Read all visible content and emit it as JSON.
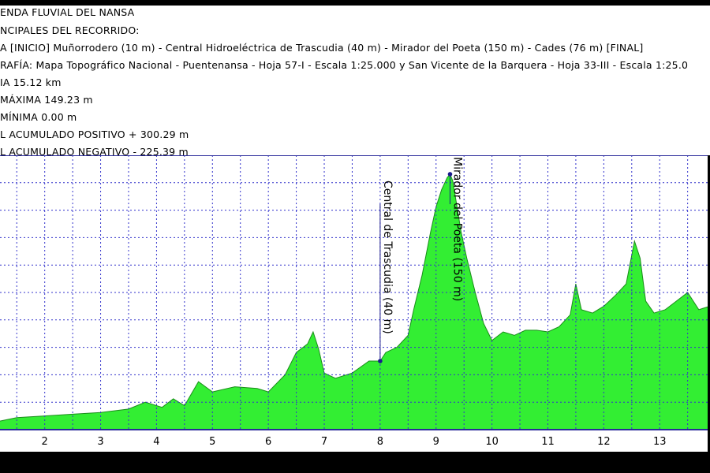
{
  "header": {
    "lines": [
      "ENDA FLUVIAL DEL NANSA",
      "NCIPALES DEL RECORRIDO:",
      "A  [INICIO] Muñorrodero (10 m) - Central Hidroeléctrica de Trascudia  (40 m) - Mirador del Poeta (150 m) - Cades (76 m)  [FINAL]",
      "RAFÍA:  Mapa Topográfico Nacional - Puentenansa - Hoja 57-I - Escala 1:25.000 y San Vicente de la Barquera - Hoja 33-III - Escala 1:25.0",
      "IA  15.12 km",
      "MÁXIMA 149.23 m",
      "MÍNIMA  0.00 m",
      "L ACUMULADO POSITIVO + 300.29 m",
      "L ACUMULADO NEGATIVO - 225.39 m"
    ]
  },
  "colors": {
    "fill": "#33ee33",
    "outline": "#1a8c1a",
    "grid": "#3333cc",
    "axis": "#2a2a9a",
    "marker": "#1a1a8c",
    "background": "#ffffff",
    "frame": "#000000"
  },
  "chart_data": {
    "type": "area",
    "title": "",
    "xlabel": "",
    "ylabel": "",
    "xlim": [
      1.2,
      13.9
    ],
    "ylim": [
      0,
      160
    ],
    "grid": true,
    "x_ticks": [
      2,
      3,
      4,
      5,
      6,
      7,
      8,
      9,
      10,
      11,
      12,
      13
    ],
    "y_grid_values": [
      16,
      32,
      48,
      64,
      80,
      96,
      112,
      128,
      144
    ],
    "series": [
      {
        "name": "",
        "x": [
          1.2,
          1.5,
          2.0,
          2.5,
          3.0,
          3.5,
          3.8,
          4.1,
          4.3,
          4.5,
          4.75,
          5.0,
          5.4,
          5.8,
          6.0,
          6.3,
          6.5,
          6.7,
          6.8,
          6.9,
          7.0,
          7.2,
          7.5,
          7.8,
          8.0,
          8.1,
          8.3,
          8.5,
          8.6,
          8.75,
          8.9,
          9.0,
          9.1,
          9.2,
          9.25,
          9.3,
          9.45,
          9.55,
          9.7,
          9.85,
          10.0,
          10.2,
          10.4,
          10.6,
          10.8,
          11.0,
          11.2,
          11.4,
          11.5,
          11.6,
          11.8,
          12.0,
          12.2,
          12.4,
          12.55,
          12.65,
          12.75,
          12.9,
          13.1,
          13.3,
          13.5,
          13.7,
          13.9
        ],
        "y": [
          5,
          7,
          8,
          9,
          10,
          12,
          16,
          13,
          18,
          14,
          28,
          22,
          25,
          24,
          22,
          32,
          45,
          50,
          57,
          47,
          33,
          30,
          33,
          40,
          40,
          45,
          48,
          55,
          70,
          90,
          115,
          130,
          140,
          147,
          149,
          145,
          115,
          100,
          80,
          62,
          52,
          57,
          55,
          58,
          58,
          57,
          60,
          67,
          85,
          70,
          68,
          72,
          78,
          85,
          110,
          100,
          75,
          68,
          70,
          75,
          80,
          70,
          72
        ]
      }
    ],
    "waypoints": [
      {
        "label": "Central de Trascudia (40 m)",
        "x": 8.0,
        "y": 40
      },
      {
        "label": "Mirador del Poeta (150 m)",
        "x": 9.25,
        "y": 149
      }
    ]
  }
}
